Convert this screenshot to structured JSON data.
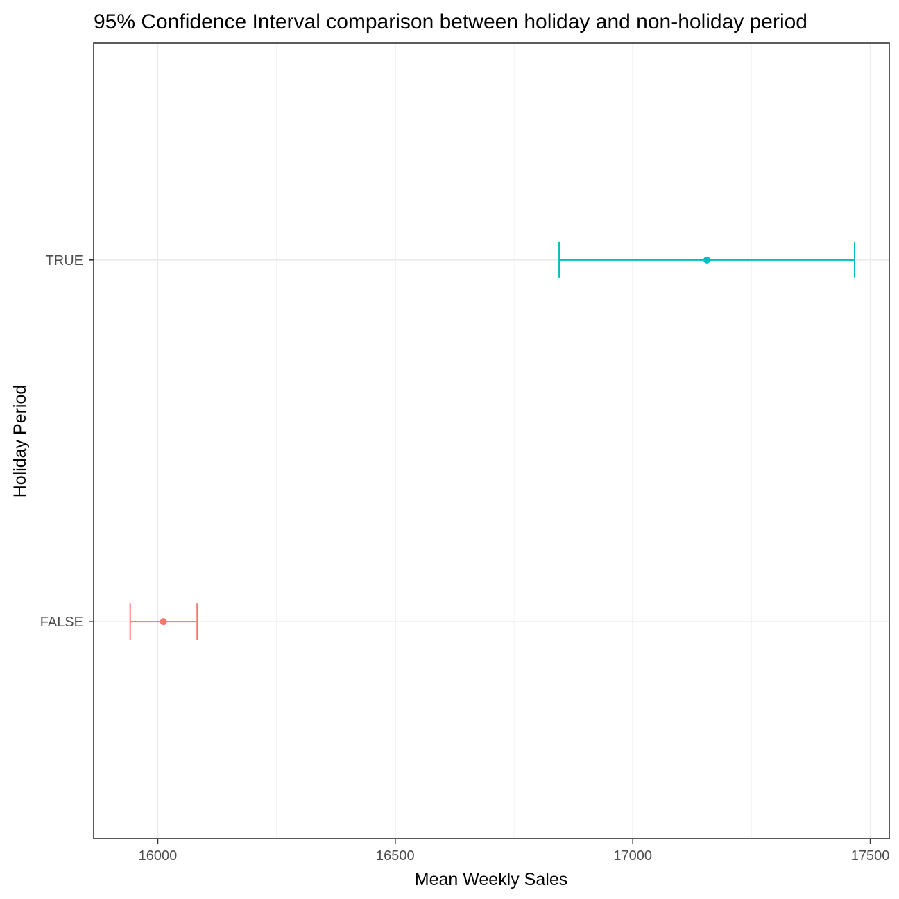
{
  "chart_data": {
    "type": "errorbar",
    "title": "95% Confidence Interval comparison between holiday and non-holiday period",
    "xlabel": "Mean Weekly Sales",
    "ylabel": "Holiday Period",
    "xlim": [
      15865,
      17540
    ],
    "x_ticks": [
      16000,
      16500,
      17000,
      17500
    ],
    "categories": [
      "FALSE",
      "TRUE"
    ],
    "grid": true,
    "legend": "none",
    "points": [
      {
        "category": "FALSE",
        "mean": 16012,
        "lower": 15942,
        "upper": 16083,
        "color": "#F8766D"
      },
      {
        "category": "TRUE",
        "mean": 17156,
        "lower": 16845,
        "upper": 17467,
        "color": "#00BFC4"
      }
    ]
  },
  "colors": {
    "false_series": "#F8766D",
    "true_series": "#00BFC4",
    "grid": "#ebebeb",
    "border": "#333333",
    "tick_text": "#4d4d4d"
  }
}
